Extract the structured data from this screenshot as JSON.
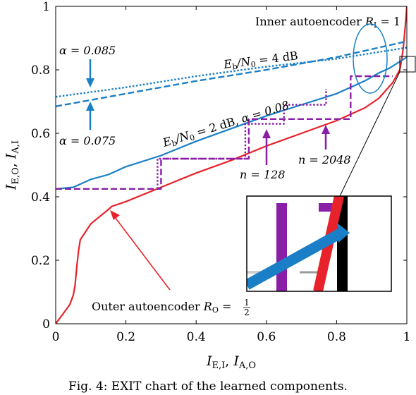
{
  "chart_data": {
    "type": "line",
    "title": "",
    "xlabel": "I_{E,I}, I_{A,O}",
    "ylabel": "I_{E,O}, I_{A,I}",
    "xlim": [
      0,
      1
    ],
    "ylim": [
      0,
      1
    ],
    "grid": false,
    "x_ticks": [
      "0",
      "0.2",
      "0.4",
      "0.6",
      "0.8",
      "1"
    ],
    "y_ticks": [
      "0",
      "0.2",
      "0.4",
      "0.6",
      "0.8",
      "1"
    ],
    "series": [
      {
        "name": "Outer autoencoder R_O = 1/2",
        "style": "solid",
        "color": "#e8222a",
        "points": [
          [
            0,
            0
          ],
          [
            0.02,
            0.03
          ],
          [
            0.04,
            0.06
          ],
          [
            0.05,
            0.09
          ],
          [
            0.055,
            0.12
          ],
          [
            0.06,
            0.18
          ],
          [
            0.065,
            0.23
          ],
          [
            0.07,
            0.265
          ],
          [
            0.1,
            0.315
          ],
          [
            0.15,
            0.36
          ],
          [
            0.16,
            0.37
          ],
          [
            0.2,
            0.385
          ],
          [
            0.3,
            0.43
          ],
          [
            0.4,
            0.475
          ],
          [
            0.5,
            0.515
          ],
          [
            0.6,
            0.56
          ],
          [
            0.7,
            0.6
          ],
          [
            0.8,
            0.64
          ],
          [
            0.88,
            0.68
          ],
          [
            0.92,
            0.71
          ],
          [
            0.96,
            0.76
          ],
          [
            0.98,
            0.8
          ],
          [
            0.985,
            0.83
          ],
          [
            0.99,
            0.87
          ],
          [
            0.995,
            0.93
          ],
          [
            1,
            1
          ]
        ]
      },
      {
        "name": "Eb/N0 = 2 dB, alpha = 0.08",
        "style": "solid",
        "color": "#1a7fc6",
        "points": [
          [
            0,
            0.425
          ],
          [
            0.05,
            0.43
          ],
          [
            0.1,
            0.455
          ],
          [
            0.15,
            0.47
          ],
          [
            0.2,
            0.495
          ],
          [
            0.3,
            0.53
          ],
          [
            0.4,
            0.575
          ],
          [
            0.5,
            0.615
          ],
          [
            0.6,
            0.655
          ],
          [
            0.7,
            0.69
          ],
          [
            0.8,
            0.725
          ],
          [
            0.88,
            0.765
          ],
          [
            0.92,
            0.79
          ],
          [
            0.95,
            0.805
          ],
          [
            1,
            0.84
          ]
        ]
      },
      {
        "name": "Eb/N0 = 4 dB, alpha = 0.075",
        "style": "dashed",
        "color": "#1a7fc6",
        "points": [
          [
            0,
            0.685
          ],
          [
            0.2,
            0.725
          ],
          [
            0.4,
            0.765
          ],
          [
            0.6,
            0.8
          ],
          [
            0.8,
            0.84
          ],
          [
            1,
            0.89
          ]
        ]
      },
      {
        "name": "Eb/N0 = 4 dB, alpha = 0.085",
        "style": "dotted",
        "color": "#1a7fc6",
        "points": [
          [
            0,
            0.715
          ],
          [
            0.2,
            0.745
          ],
          [
            0.4,
            0.78
          ],
          [
            0.6,
            0.81
          ],
          [
            0.8,
            0.835
          ],
          [
            1,
            0.87
          ]
        ]
      },
      {
        "name": "n = 128 trajectory",
        "style": "dotted",
        "color": "#8b1ea6",
        "points": [
          [
            0.29,
            0.425
          ],
          [
            0.29,
            0.52
          ],
          [
            0.54,
            0.52
          ],
          [
            0.54,
            0.63
          ],
          [
            0.65,
            0.63
          ],
          [
            0.65,
            0.69
          ],
          [
            0.77,
            0.69
          ],
          [
            0.77,
            0.74
          ]
        ]
      },
      {
        "name": "n = 2048 trajectory",
        "style": "dashed",
        "color": "#8b1ea6",
        "points": [
          [
            0,
            0.425
          ],
          [
            0.3,
            0.425
          ],
          [
            0.3,
            0.52
          ],
          [
            0.55,
            0.52
          ],
          [
            0.55,
            0.645
          ],
          [
            0.84,
            0.645
          ],
          [
            0.84,
            0.78
          ],
          [
            0.96,
            0.78
          ]
        ]
      }
    ],
    "annotations": {
      "inner": {
        "prefix": "Inner autoencoder ",
        "sym": "R",
        "sub": "I",
        "suffix": " = 1"
      },
      "outer": {
        "prefix": "Outer autoencoder ",
        "sym": "R",
        "sub": "O",
        "eq": " = ",
        "num": "1",
        "den": "2"
      },
      "eb4": {
        "var": "E",
        "sub": "b",
        "rest": "/N",
        "sub0": "0",
        "val": " = 4 dB"
      },
      "eb2": {
        "var": "E",
        "sub": "b",
        "rest": "/N",
        "sub0": "0",
        "val": " = 2 dB, ",
        "alpha": "α = 0.08"
      },
      "alpha_top": "α = 0.085",
      "alpha_bottom": "α = 0.075",
      "n128": "n = 128",
      "n2048": "n = 2048"
    }
  },
  "caption": "Fig. 4: EXIT chart of the learned components."
}
